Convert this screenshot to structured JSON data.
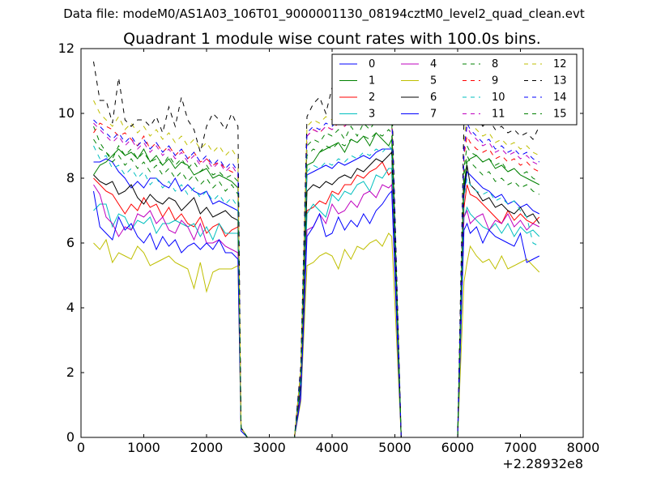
{
  "suptitle": "Data file: modeM0/AS1A03_106T01_9000001130_08194cztM0_level2_quad_clean.evt",
  "chart_data": {
    "type": "line",
    "title": "Quadrant 1 module wise count rates with 100.0s bins.",
    "xlabel": "",
    "ylabel": "",
    "xlim": [
      0,
      8000
    ],
    "ylim": [
      0,
      12
    ],
    "x_offset_label": "+2.28932e8",
    "x_ticks": [
      "0",
      "1000",
      "2000",
      "3000",
      "4000",
      "5000",
      "6000",
      "7000",
      "8000"
    ],
    "y_ticks": [
      "0",
      "2",
      "4",
      "6",
      "8",
      "10",
      "12"
    ],
    "grid": false,
    "legend_position": "top-right",
    "legend_columns": 4,
    "x": [
      200,
      300,
      400,
      500,
      600,
      700,
      800,
      900,
      1000,
      1100,
      1200,
      1300,
      1400,
      1500,
      1600,
      1700,
      1800,
      1900,
      2000,
      2100,
      2200,
      2300,
      2400,
      2500,
      2550,
      2650,
      2750,
      3400,
      3500,
      3600,
      3700,
      3800,
      3900,
      4000,
      4100,
      4200,
      4300,
      4400,
      4500,
      4600,
      4700,
      4800,
      4900,
      4950,
      5100,
      6000,
      6100,
      6150,
      6200,
      6300,
      6400,
      6500,
      6600,
      6700,
      6800,
      6900,
      7000,
      7100,
      7200,
      7300
    ],
    "series": [
      {
        "name": "0",
        "color": "#0000ff",
        "dash": "solid",
        "values": [
          8.5,
          8.5,
          8.6,
          8.5,
          8.2,
          8.0,
          7.7,
          7.9,
          7.7,
          8.0,
          8.0,
          7.8,
          7.7,
          8.0,
          7.6,
          7.8,
          7.6,
          7.5,
          7.6,
          7.2,
          7.3,
          7.2,
          7.1,
          7.0,
          0.3,
          0.0,
          0.0,
          0.0,
          2.0,
          8.1,
          8.2,
          8.3,
          8.4,
          8.3,
          8.5,
          8.4,
          8.5,
          8.6,
          8.7,
          8.6,
          8.8,
          8.9,
          8.9,
          8.9,
          0.0,
          0.0,
          7.5,
          8.2,
          8.1,
          7.9,
          7.7,
          7.6,
          7.4,
          7.5,
          7.2,
          7.3,
          7.1,
          7.2,
          7.0,
          6.9
        ]
      },
      {
        "name": "1",
        "color": "#008000",
        "dash": "solid",
        "values": [
          8.1,
          8.4,
          8.5,
          8.7,
          8.9,
          8.7,
          8.8,
          8.6,
          8.9,
          8.5,
          8.7,
          8.4,
          8.6,
          8.3,
          8.5,
          8.4,
          8.1,
          8.2,
          8.3,
          8.0,
          8.1,
          8.0,
          7.9,
          7.7,
          0.3,
          0.0,
          0.0,
          0.0,
          1.8,
          8.4,
          8.5,
          8.8,
          8.9,
          9.0,
          9.1,
          8.8,
          9.2,
          9.1,
          9.3,
          9.0,
          9.4,
          9.2,
          9.0,
          9.2,
          0.0,
          0.0,
          7.8,
          8.5,
          8.6,
          8.7,
          8.5,
          8.6,
          8.3,
          8.4,
          8.2,
          8.3,
          8.1,
          8.0,
          7.9,
          7.8
        ]
      },
      {
        "name": "2",
        "color": "#ff0000",
        "dash": "solid",
        "values": [
          8.0,
          7.8,
          7.6,
          7.5,
          7.2,
          6.9,
          7.2,
          7.0,
          7.4,
          7.1,
          7.2,
          6.8,
          7.1,
          6.7,
          6.9,
          6.6,
          6.5,
          6.8,
          6.3,
          6.5,
          6.6,
          6.2,
          6.4,
          6.5,
          0.3,
          0.0,
          0.0,
          0.0,
          1.5,
          7.0,
          7.1,
          7.3,
          7.2,
          7.6,
          7.5,
          7.8,
          7.8,
          8.1,
          8.0,
          8.2,
          8.3,
          8.5,
          8.1,
          8.2,
          0.0,
          0.0,
          7.1,
          7.8,
          7.5,
          7.4,
          7.2,
          7.0,
          6.8,
          6.6,
          7.0,
          6.7,
          6.9,
          6.7,
          6.6,
          6.8
        ]
      },
      {
        "name": "3",
        "color": "#00bfbf",
        "dash": "solid",
        "values": [
          7.0,
          7.2,
          7.2,
          6.5,
          6.9,
          6.8,
          6.4,
          6.7,
          6.6,
          6.8,
          6.3,
          6.6,
          6.6,
          6.7,
          6.6,
          6.5,
          6.6,
          6.2,
          6.5,
          6.1,
          6.6,
          6.3,
          6.3,
          6.3,
          0.3,
          0.0,
          0.0,
          0.0,
          1.4,
          6.9,
          7.2,
          7.0,
          6.8,
          7.5,
          7.3,
          7.6,
          7.5,
          7.8,
          7.9,
          7.6,
          8.1,
          8.0,
          8.3,
          8.3,
          0.0,
          0.0,
          6.8,
          7.1,
          6.9,
          6.7,
          6.5,
          6.4,
          6.6,
          6.3,
          6.6,
          6.2,
          6.5,
          6.3,
          6.4,
          6.2
        ]
      },
      {
        "name": "4",
        "color": "#bf00bf",
        "dash": "solid",
        "values": [
          7.8,
          7.5,
          6.8,
          6.6,
          6.2,
          6.5,
          6.4,
          6.9,
          6.8,
          7.0,
          6.6,
          6.8,
          6.4,
          6.3,
          6.7,
          6.5,
          6.1,
          6.6,
          6.0,
          6.0,
          6.1,
          5.9,
          5.8,
          5.7,
          0.3,
          0.0,
          0.0,
          0.0,
          1.3,
          6.4,
          6.5,
          6.9,
          6.6,
          7.2,
          6.9,
          7.0,
          7.3,
          7.1,
          7.5,
          7.6,
          7.4,
          7.8,
          7.7,
          7.8,
          0.0,
          0.0,
          6.8,
          7.0,
          6.6,
          6.8,
          6.9,
          6.4,
          6.7,
          6.6,
          6.9,
          6.5,
          6.7,
          6.4,
          6.6,
          6.5
        ]
      },
      {
        "name": "5",
        "color": "#bfbf00",
        "dash": "solid",
        "values": [
          6.0,
          5.8,
          6.1,
          5.4,
          5.7,
          5.6,
          5.5,
          5.9,
          5.7,
          5.3,
          5.4,
          5.5,
          5.6,
          5.4,
          5.3,
          5.2,
          4.6,
          5.4,
          4.5,
          5.1,
          5.2,
          5.2,
          5.2,
          5.3,
          0.2,
          0.0,
          0.0,
          0.0,
          1.1,
          5.3,
          5.4,
          5.6,
          5.7,
          5.6,
          5.2,
          5.8,
          5.5,
          5.9,
          5.8,
          6.0,
          6.1,
          5.9,
          6.3,
          6.2,
          0.0,
          0.0,
          4.8,
          5.4,
          5.9,
          5.6,
          5.4,
          5.5,
          5.2,
          5.6,
          5.2,
          5.3,
          5.4,
          5.5,
          5.3,
          5.1
        ]
      },
      {
        "name": "6",
        "color": "#000000",
        "dash": "solid",
        "values": [
          8.1,
          7.9,
          7.8,
          7.9,
          7.5,
          7.6,
          7.8,
          7.4,
          7.2,
          7.5,
          7.3,
          7.2,
          7.4,
          7.3,
          7.0,
          7.2,
          7.4,
          6.9,
          7.1,
          6.8,
          6.9,
          7.0,
          6.8,
          6.7,
          0.3,
          0.0,
          0.0,
          0.0,
          1.6,
          7.6,
          7.8,
          7.7,
          7.9,
          7.8,
          8.0,
          8.1,
          8.0,
          8.3,
          8.2,
          8.4,
          8.6,
          8.5,
          8.7,
          8.8,
          0.0,
          0.0,
          7.6,
          8.4,
          7.8,
          7.6,
          7.3,
          7.4,
          7.1,
          7.2,
          7.0,
          6.9,
          7.1,
          6.8,
          6.9,
          6.6
        ]
      },
      {
        "name": "7",
        "color": "#0000ff",
        "dash": "solid",
        "values": [
          7.6,
          6.5,
          6.3,
          6.1,
          6.8,
          6.4,
          6.6,
          6.2,
          6.0,
          6.3,
          5.8,
          6.2,
          5.9,
          6.1,
          5.7,
          5.9,
          6.0,
          5.8,
          6.0,
          5.8,
          6.1,
          5.7,
          5.7,
          5.5,
          0.2,
          0.0,
          0.0,
          0.0,
          1.2,
          6.2,
          6.5,
          6.9,
          6.2,
          6.3,
          6.8,
          6.4,
          6.7,
          6.5,
          6.9,
          6.6,
          7.0,
          7.2,
          7.5,
          7.6,
          0.0,
          0.0,
          6.4,
          6.6,
          6.3,
          6.5,
          6.0,
          6.4,
          6.2,
          6.1,
          6.0,
          5.9,
          6.3,
          5.4,
          5.5,
          5.6
        ]
      },
      {
        "name": "8",
        "color": "#008000",
        "dash": "dashed",
        "values": [
          9.6,
          9.1,
          8.8,
          8.6,
          9.0,
          8.7,
          8.9,
          8.6,
          8.8,
          8.5,
          8.6,
          8.4,
          8.7,
          8.4,
          8.6,
          8.3,
          8.5,
          8.2,
          8.4,
          8.1,
          8.2,
          8.0,
          8.1,
          7.9,
          0.3,
          0.0,
          0.0,
          0.0,
          1.9,
          9.0,
          9.2,
          9.1,
          9.4,
          9.3,
          9.5,
          9.2,
          9.6,
          9.3,
          9.7,
          9.5,
          9.8,
          9.6,
          9.9,
          9.8,
          0.0,
          0.0,
          8.3,
          9.0,
          8.8,
          8.7,
          8.5,
          8.6,
          8.4,
          8.5,
          8.2,
          8.3,
          8.1,
          8.2,
          8.0,
          7.9
        ]
      },
      {
        "name": "9",
        "color": "#ff0000",
        "dash": "dashed",
        "values": [
          9.4,
          9.7,
          9.6,
          9.5,
          9.3,
          9.4,
          9.2,
          9.0,
          9.3,
          8.9,
          9.1,
          8.8,
          9.0,
          8.7,
          8.9,
          8.6,
          8.8,
          8.5,
          8.6,
          8.4,
          8.5,
          8.3,
          8.2,
          8.1,
          0.3,
          0.0,
          0.0,
          0.0,
          2.0,
          9.3,
          9.5,
          9.4,
          9.6,
          9.5,
          9.7,
          9.6,
          9.8,
          9.7,
          9.9,
          9.8,
          10.0,
          9.9,
          10.1,
          10.0,
          0.0,
          0.0,
          8.7,
          9.3,
          9.1,
          8.9,
          8.8,
          8.9,
          8.6,
          8.7,
          8.5,
          8.6,
          8.4,
          8.5,
          8.3,
          8.2
        ]
      },
      {
        "name": "10",
        "color": "#00bfbf",
        "dash": "dashed",
        "values": [
          9.0,
          8.6,
          8.7,
          8.3,
          8.4,
          8.1,
          8.3,
          8.0,
          8.2,
          7.8,
          8.0,
          7.7,
          7.9,
          7.6,
          7.8,
          7.5,
          7.7,
          7.4,
          7.6,
          7.3,
          7.5,
          7.2,
          7.4,
          7.1,
          0.3,
          0.0,
          0.0,
          0.0,
          1.7,
          8.2,
          8.4,
          8.3,
          8.5,
          8.4,
          8.6,
          8.5,
          8.7,
          8.6,
          8.8,
          8.7,
          8.9,
          8.8,
          9.0,
          8.9,
          0.0,
          0.0,
          7.4,
          8.0,
          7.8,
          7.6,
          7.5,
          7.6,
          7.3,
          7.4,
          7.2,
          7.3,
          7.0,
          6.8,
          6.0,
          5.9
        ]
      },
      {
        "name": "11",
        "color": "#bf00bf",
        "dash": "dashed",
        "values": [
          9.7,
          9.5,
          9.3,
          9.1,
          9.3,
          9.0,
          9.2,
          8.9,
          9.1,
          8.8,
          9.0,
          8.7,
          8.9,
          8.6,
          8.8,
          8.5,
          8.7,
          8.4,
          8.6,
          8.3,
          8.5,
          8.2,
          8.4,
          8.1,
          0.3,
          0.0,
          0.0,
          0.0,
          1.9,
          9.3,
          9.5,
          9.4,
          9.6,
          9.5,
          9.7,
          9.6,
          9.8,
          9.7,
          9.9,
          9.8,
          10.1,
          9.9,
          10.2,
          10.0,
          0.0,
          0.0,
          8.8,
          9.6,
          9.4,
          9.2,
          9.0,
          9.1,
          8.8,
          8.9,
          8.7,
          8.8,
          8.6,
          8.7,
          8.5,
          8.4
        ]
      },
      {
        "name": "12",
        "color": "#bfbf00",
        "dash": "dashed",
        "values": [
          10.4,
          10.0,
          9.8,
          9.6,
          9.9,
          9.5,
          9.7,
          9.4,
          9.6,
          9.3,
          9.5,
          9.2,
          9.4,
          9.1,
          9.3,
          9.0,
          9.2,
          8.9,
          9.1,
          8.8,
          9.0,
          8.7,
          8.9,
          8.6,
          0.3,
          0.0,
          0.0,
          0.0,
          2.1,
          9.6,
          9.8,
          9.7,
          9.9,
          9.8,
          10.1,
          10.0,
          10.2,
          10.1,
          10.3,
          10.2,
          10.5,
          10.4,
          10.6,
          10.5,
          0.0,
          0.0,
          9.2,
          9.9,
          9.7,
          9.5,
          9.3,
          9.4,
          9.1,
          9.2,
          9.0,
          9.1,
          8.9,
          9.0,
          8.8,
          8.7
        ]
      },
      {
        "name": "13",
        "color": "#000000",
        "dash": "dashed",
        "values": [
          11.6,
          10.4,
          10.4,
          9.7,
          11.1,
          9.8,
          9.6,
          9.8,
          9.8,
          9.6,
          9.9,
          9.4,
          10.2,
          9.6,
          10.5,
          9.8,
          9.5,
          8.8,
          9.6,
          10.0,
          9.8,
          9.5,
          10.0,
          9.6,
          0.3,
          0.0,
          0.0,
          0.0,
          2.2,
          9.9,
          10.3,
          10.5,
          10.0,
          10.8,
          10.6,
          11.0,
          10.7,
          10.9,
          10.8,
          11.1,
          10.9,
          11.2,
          11.1,
          10.6,
          0.0,
          0.0,
          9.8,
          10.4,
          10.0,
          9.9,
          9.6,
          9.8,
          9.5,
          9.6,
          9.4,
          9.5,
          9.3,
          9.4,
          9.2,
          9.6
        ]
      },
      {
        "name": "14",
        "color": "#0000ff",
        "dash": "dashed",
        "values": [
          9.8,
          9.6,
          9.4,
          9.2,
          9.4,
          9.1,
          9.3,
          9.0,
          9.2,
          8.9,
          9.1,
          8.8,
          9.0,
          8.7,
          8.9,
          8.6,
          8.8,
          8.5,
          8.7,
          8.4,
          8.6,
          8.3,
          8.5,
          8.2,
          0.3,
          0.0,
          0.0,
          0.0,
          2.0,
          9.4,
          9.6,
          9.5,
          9.7,
          9.6,
          9.8,
          9.7,
          9.9,
          9.8,
          10.0,
          9.9,
          10.2,
          10.0,
          10.3,
          10.1,
          0.0,
          0.0,
          8.9,
          9.7,
          9.5,
          9.3,
          9.1,
          9.2,
          8.9,
          9.0,
          8.8,
          8.9,
          8.7,
          8.8,
          8.6,
          8.5
        ]
      },
      {
        "name": "15",
        "color": "#008000",
        "dash": "dashed",
        "values": [
          9.2,
          8.9,
          8.8,
          8.5,
          8.7,
          8.4,
          8.6,
          8.3,
          8.5,
          8.2,
          8.4,
          8.1,
          8.3,
          8.0,
          8.2,
          7.9,
          8.1,
          7.8,
          8.0,
          7.7,
          7.9,
          7.6,
          7.8,
          7.5,
          0.3,
          0.0,
          0.0,
          0.0,
          1.8,
          8.7,
          8.9,
          8.8,
          9.0,
          8.9,
          9.1,
          9.0,
          9.2,
          9.1,
          9.3,
          9.2,
          9.4,
          9.3,
          9.5,
          9.4,
          0.0,
          0.0,
          8.1,
          8.7,
          8.5,
          8.3,
          8.1,
          8.2,
          7.9,
          8.0,
          7.8,
          7.9,
          7.7,
          7.8,
          7.6,
          7.5
        ]
      }
    ]
  }
}
